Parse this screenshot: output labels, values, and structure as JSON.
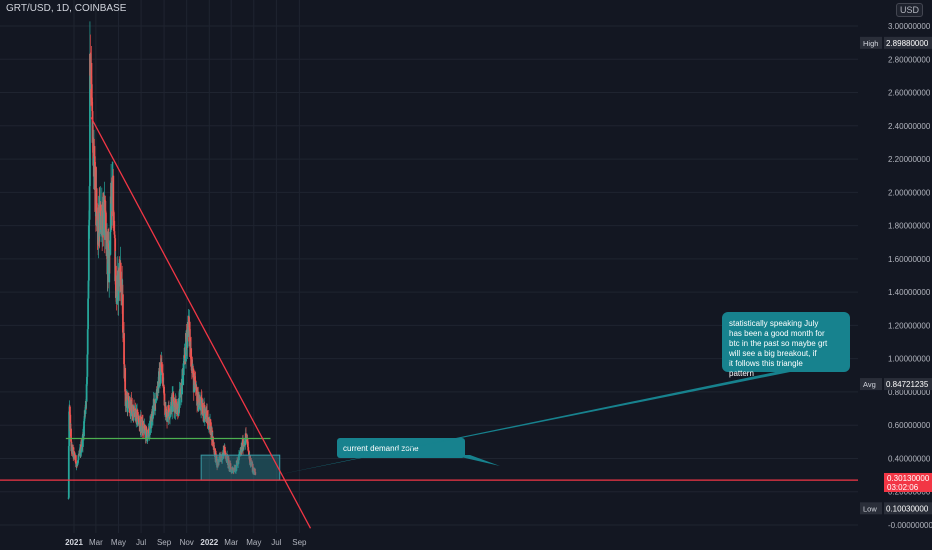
{
  "header": {
    "symbol_line": "GRT/USD, 1D, COINBASE",
    "currency": "USD"
  },
  "price_labels": {
    "high_label": "High",
    "high_value": "2.89880000",
    "avg_label": "Avg",
    "avg_value": "0.84721235",
    "low_label": "Low",
    "low_value": "0.10030000",
    "last_value": "0.30130000",
    "countdown": "03:02:06"
  },
  "colors": {
    "background": "#131722",
    "up_candle": "#26a69a",
    "down_candle": "#ef5350",
    "trendline": "#f23645",
    "support_line": "#f23645",
    "demand_line": "#4caf50",
    "zone_fill": "#2a7f89",
    "note_fill": "#17828e"
  },
  "annotations": {
    "demand_zone_label": "current demand zone",
    "note_text": "statistically speaking July has been a good month for btc in the past so maybe grt will see a big breakout, if it follows this triangle pattern"
  },
  "chart_data": {
    "type": "candlestick",
    "symbol": "GRT/USD",
    "interval": "1D",
    "exchange": "COINBASE",
    "y_axis": {
      "range": [
        -0.05,
        3.05
      ],
      "ticks": [
        "3.00000000",
        "2.80000000",
        "2.60000000",
        "2.40000000",
        "2.20000000",
        "2.00000000",
        "1.80000000",
        "1.60000000",
        "1.40000000",
        "1.20000000",
        "1.00000000",
        "0.80000000",
        "0.60000000",
        "0.40000000",
        "0.20000000",
        "-0.00000000"
      ]
    },
    "x_axis": {
      "ticks": [
        "2021",
        "Mar",
        "May",
        "Jul",
        "Sep",
        "Nov",
        "2022",
        "Mar",
        "May",
        "Jul",
        "Sep"
      ]
    },
    "approx_close_path": [
      {
        "date": "2020-12-17",
        "close": 0.16
      },
      {
        "date": "2020-12-19",
        "close": 0.72
      },
      {
        "date": "2020-12-25",
        "close": 0.46
      },
      {
        "date": "2021-01-10",
        "close": 0.36
      },
      {
        "date": "2021-01-25",
        "close": 0.52
      },
      {
        "date": "2021-02-05",
        "close": 0.85
      },
      {
        "date": "2021-02-12",
        "close": 2.1
      },
      {
        "date": "2021-02-13",
        "close": 2.9
      },
      {
        "date": "2021-02-20",
        "close": 2.3
      },
      {
        "date": "2021-03-05",
        "close": 1.75
      },
      {
        "date": "2021-03-20",
        "close": 1.9
      },
      {
        "date": "2021-04-05",
        "close": 1.55
      },
      {
        "date": "2021-04-15",
        "close": 2.15
      },
      {
        "date": "2021-04-25",
        "close": 1.35
      },
      {
        "date": "2021-05-05",
        "close": 1.55
      },
      {
        "date": "2021-05-12",
        "close": 1.3
      },
      {
        "date": "2021-05-20",
        "close": 0.75
      },
      {
        "date": "2021-06-10",
        "close": 0.68
      },
      {
        "date": "2021-07-01",
        "close": 0.6
      },
      {
        "date": "2021-07-20",
        "close": 0.53
      },
      {
        "date": "2021-08-10",
        "close": 0.78
      },
      {
        "date": "2021-08-25",
        "close": 0.95
      },
      {
        "date": "2021-09-07",
        "close": 0.65
      },
      {
        "date": "2021-09-25",
        "close": 0.75
      },
      {
        "date": "2021-10-10",
        "close": 0.7
      },
      {
        "date": "2021-10-25",
        "close": 0.95
      },
      {
        "date": "2021-11-05",
        "close": 1.22
      },
      {
        "date": "2021-11-20",
        "close": 0.85
      },
      {
        "date": "2021-12-01",
        "close": 0.75
      },
      {
        "date": "2021-12-20",
        "close": 0.68
      },
      {
        "date": "2022-01-05",
        "close": 0.58
      },
      {
        "date": "2022-01-22",
        "close": 0.36
      },
      {
        "date": "2022-02-10",
        "close": 0.45
      },
      {
        "date": "2022-02-28",
        "close": 0.33
      },
      {
        "date": "2022-03-15",
        "close": 0.35
      },
      {
        "date": "2022-04-01",
        "close": 0.48
      },
      {
        "date": "2022-04-10",
        "close": 0.53
      },
      {
        "date": "2022-04-20",
        "close": 0.4
      },
      {
        "date": "2022-04-30",
        "close": 0.33
      },
      {
        "date": "2022-05-06",
        "close": 0.3
      }
    ],
    "trendline_descending": {
      "from": {
        "date": "2021-02-16",
        "value": 2.45
      },
      "to": {
        "date": "2022-10-01",
        "value": -0.02
      }
    },
    "support_line": {
      "value": 0.27
    },
    "demand_line": {
      "from_date": "2020-12-10",
      "to_date": "2022-06-15",
      "value": 0.52
    },
    "demand_zone": {
      "from_date": "2021-12-10",
      "to_date": "2022-07-10",
      "low": 0.27,
      "high": 0.42
    },
    "callout_target": {
      "date": "2022-07-01",
      "value": 0.3
    }
  }
}
